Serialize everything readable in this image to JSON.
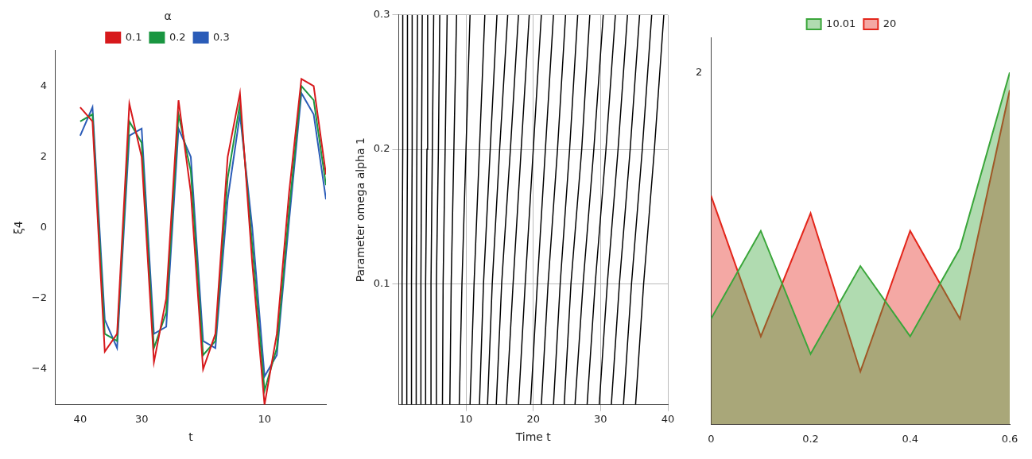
{
  "chart_data": [
    {
      "type": "line",
      "xlabel": "t",
      "ylabel": "ξ4",
      "zlabel": "α",
      "x": [
        0,
        2,
        4,
        6,
        8,
        10,
        12,
        14,
        16,
        18,
        20,
        22,
        24,
        26,
        28,
        30,
        32,
        34,
        36,
        38,
        40
      ],
      "series": [
        {
          "name": "0.1",
          "color": "#d7191c",
          "values": [
            1.5,
            4,
            4.2,
            1,
            -3,
            -5,
            -1,
            3.8,
            2,
            -3,
            -4,
            1,
            3.6,
            -2,
            -3.8,
            2,
            3.5,
            -3,
            -3.5,
            3,
            3.4
          ]
        },
        {
          "name": "0.2",
          "color": "#1a9641",
          "values": [
            1.2,
            3.6,
            4,
            0.5,
            -3.4,
            -4.6,
            -0.5,
            3.5,
            1.4,
            -3.2,
            -3.6,
            1.6,
            3.2,
            -2.4,
            -3.4,
            2.4,
            3,
            -3.2,
            -3,
            3.2,
            3
          ]
        },
        {
          "name": "0.3",
          "color": "#2b5cb8",
          "values": [
            0.8,
            3.2,
            3.8,
            0.2,
            -3.6,
            -4.2,
            0,
            3.2,
            0.8,
            -3.4,
            -3.2,
            2,
            2.8,
            -2.8,
            -3,
            2.8,
            2.6,
            -3.4,
            -2.6,
            3.4,
            2.6
          ]
        }
      ],
      "xlim": [
        0,
        44
      ],
      "xticks": [
        10,
        30,
        40
      ],
      "ylim": [
        -5,
        5
      ],
      "yticks": [
        {
          "value": -4,
          "label": "−4"
        },
        {
          "value": -2,
          "label": "−2"
        },
        0,
        2,
        4
      ],
      "grid": false,
      "legend": "top"
    },
    {
      "type": "contour",
      "xlabel": "Time t",
      "ylabel": "Parameter omega alpha 1",
      "color": "#000000",
      "lines": [
        {
          "x": [
            0.5,
            0.5,
            0.6,
            0.6
          ],
          "y": [
            0.01,
            0.1,
            0.2,
            0.3
          ]
        },
        {
          "x": [
            1.2,
            1.2,
            1.3,
            1.3
          ],
          "y": [
            0.01,
            0.1,
            0.2,
            0.3
          ]
        },
        {
          "x": [
            1.9,
            1.9,
            2.0,
            2.0
          ],
          "y": [
            0.01,
            0.1,
            0.2,
            0.3
          ]
        },
        {
          "x": [
            2.6,
            2.6,
            2.7,
            2.8
          ],
          "y": [
            0.01,
            0.1,
            0.2,
            0.3
          ]
        },
        {
          "x": [
            3.3,
            3.3,
            3.4,
            3.5
          ],
          "y": [
            0.01,
            0.1,
            0.2,
            0.3
          ]
        },
        {
          "x": [
            4.0,
            4.0,
            4.2,
            4.3
          ],
          "y": [
            0.01,
            0.1,
            0.2,
            0.3
          ]
        },
        {
          "x": [
            4.8,
            4.8,
            5.0,
            5.2
          ],
          "y": [
            0.01,
            0.1,
            0.2,
            0.3
          ]
        },
        {
          "x": [
            5.6,
            5.6,
            5.9,
            6.1
          ],
          "y": [
            0.01,
            0.1,
            0.2,
            0.3
          ]
        },
        {
          "x": [
            6.5,
            6.6,
            6.9,
            7.2
          ],
          "y": [
            0.01,
            0.1,
            0.2,
            0.3
          ]
        },
        {
          "x": [
            7.6,
            7.8,
            8.2,
            8.6
          ],
          "y": [
            0.01,
            0.1,
            0.2,
            0.3
          ]
        },
        {
          "x": [
            9.0,
            9.4,
            10.0,
            10.6
          ],
          "y": [
            0.01,
            0.1,
            0.2,
            0.3
          ]
        },
        {
          "x": [
            10.6,
            11.2,
            12.0,
            12.8
          ],
          "y": [
            0.01,
            0.1,
            0.2,
            0.3
          ]
        },
        {
          "x": [
            12.0,
            12.6,
            13.6,
            14.6
          ],
          "y": [
            0.01,
            0.1,
            0.2,
            0.3
          ]
        },
        {
          "x": [
            13.2,
            13.9,
            15.0,
            16.2
          ],
          "y": [
            0.01,
            0.1,
            0.2,
            0.3
          ]
        },
        {
          "x": [
            14.5,
            15.3,
            16.6,
            17.8
          ],
          "y": [
            0.01,
            0.1,
            0.2,
            0.3
          ]
        },
        {
          "x": [
            16.0,
            17.0,
            18.2,
            19.4
          ],
          "y": [
            0.01,
            0.1,
            0.2,
            0.3
          ]
        },
        {
          "x": [
            17.8,
            18.8,
            20.0,
            21.2
          ],
          "y": [
            0.01,
            0.1,
            0.2,
            0.3
          ]
        },
        {
          "x": [
            19.6,
            20.6,
            21.8,
            23.0
          ],
          "y": [
            0.01,
            0.1,
            0.2,
            0.3
          ]
        },
        {
          "x": [
            21.2,
            22.2,
            23.6,
            24.8
          ],
          "y": [
            0.01,
            0.1,
            0.2,
            0.3
          ]
        },
        {
          "x": [
            23.0,
            24.0,
            25.4,
            26.6
          ],
          "y": [
            0.01,
            0.1,
            0.2,
            0.3
          ]
        },
        {
          "x": [
            24.6,
            25.6,
            27.2,
            28.4
          ],
          "y": [
            0.01,
            0.1,
            0.2,
            0.3
          ]
        },
        {
          "x": [
            26.2,
            27.4,
            29.0,
            30.4
          ],
          "y": [
            0.01,
            0.1,
            0.2,
            0.3
          ]
        },
        {
          "x": [
            28.0,
            29.2,
            30.8,
            32.2
          ],
          "y": [
            0.01,
            0.1,
            0.2,
            0.3
          ]
        },
        {
          "x": [
            29.8,
            31.0,
            32.6,
            34.0
          ],
          "y": [
            0.01,
            0.1,
            0.2,
            0.3
          ]
        },
        {
          "x": [
            31.6,
            32.8,
            34.4,
            35.8
          ],
          "y": [
            0.01,
            0.1,
            0.2,
            0.3
          ]
        },
        {
          "x": [
            33.4,
            34.6,
            36.2,
            37.6
          ],
          "y": [
            0.01,
            0.1,
            0.2,
            0.3
          ]
        },
        {
          "x": [
            35.2,
            36.4,
            38.0,
            39.4
          ],
          "y": [
            0.01,
            0.1,
            0.2,
            0.3
          ]
        }
      ],
      "xlim": [
        0,
        40
      ],
      "xticks": [
        10,
        20,
        30,
        40
      ],
      "ylim": [
        0.01,
        0.3
      ],
      "yticks": [
        0.1,
        0.2,
        0.3
      ],
      "grid": true
    },
    {
      "type": "surface",
      "x": [
        0,
        0.1,
        0.2,
        0.3,
        0.4,
        0.5,
        0.6
      ],
      "series": [
        {
          "name": "10.01",
          "color": "#3aa63a",
          "values": [
            0.6,
            1.1,
            0.4,
            0.9,
            0.5,
            1.0,
            2.0
          ]
        },
        {
          "name": "20",
          "color": "#e3261b",
          "values": [
            1.3,
            0.5,
            1.2,
            0.3,
            1.1,
            0.6,
            1.9
          ]
        }
      ],
      "xlim": [
        0,
        0.6
      ],
      "xticks": [
        0,
        0.2,
        0.4,
        0.6
      ],
      "ylim": [
        0,
        2.2
      ],
      "yticks": [
        2
      ],
      "grid": false,
      "legend": "top"
    }
  ]
}
